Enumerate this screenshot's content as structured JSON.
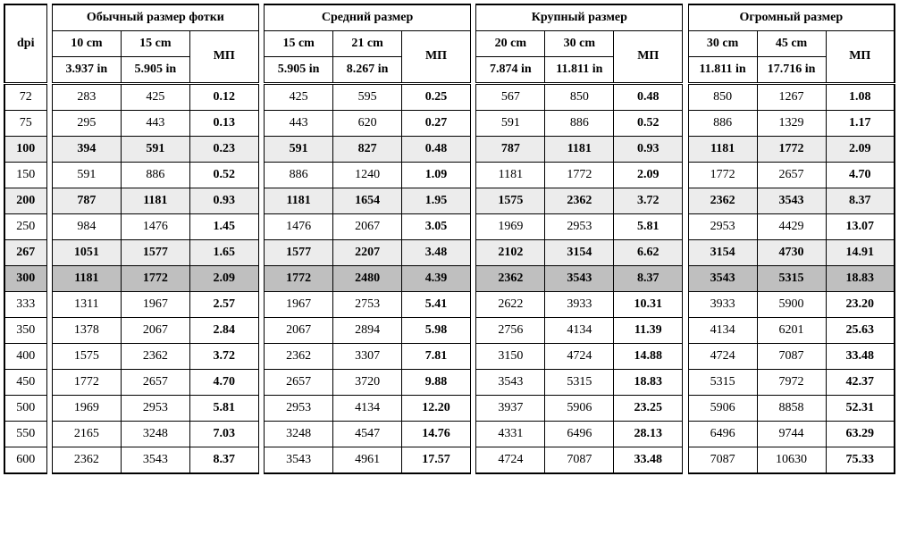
{
  "table": {
    "dpi_label": "dpi",
    "mp_label": "МП",
    "groups": [
      {
        "title": "Обычный размер фотки",
        "cm": [
          "10 cm",
          "15 cm"
        ],
        "in": [
          "3.937 in",
          "5.905 in"
        ]
      },
      {
        "title": "Средний размер",
        "cm": [
          "15 cm",
          "21 cm"
        ],
        "in": [
          "5.905 in",
          "8.267 in"
        ]
      },
      {
        "title": "Крупный размер",
        "cm": [
          "20 cm",
          "30 cm"
        ],
        "in": [
          "7.874 in",
          "11.811 in"
        ]
      },
      {
        "title": "Огромный размер",
        "cm": [
          "30 cm",
          "45 cm"
        ],
        "in": [
          "11.811 in",
          "17.716 in"
        ]
      }
    ],
    "rows": [
      {
        "dpi": "72",
        "shade": "",
        "g1": [
          "283",
          "425",
          "0.12"
        ],
        "g2": [
          "425",
          "595",
          "0.25"
        ],
        "g3": [
          "567",
          "850",
          "0.48"
        ],
        "g4": [
          "850",
          "1267",
          "1.08"
        ]
      },
      {
        "dpi": "75",
        "shade": "",
        "g1": [
          "295",
          "443",
          "0.13"
        ],
        "g2": [
          "443",
          "620",
          "0.27"
        ],
        "g3": [
          "591",
          "886",
          "0.52"
        ],
        "g4": [
          "886",
          "1329",
          "1.17"
        ]
      },
      {
        "dpi": "100",
        "shade": "light",
        "g1": [
          "394",
          "591",
          "0.23"
        ],
        "g2": [
          "591",
          "827",
          "0.48"
        ],
        "g3": [
          "787",
          "1181",
          "0.93"
        ],
        "g4": [
          "1181",
          "1772",
          "2.09"
        ]
      },
      {
        "dpi": "150",
        "shade": "",
        "g1": [
          "591",
          "886",
          "0.52"
        ],
        "g2": [
          "886",
          "1240",
          "1.09"
        ],
        "g3": [
          "1181",
          "1772",
          "2.09"
        ],
        "g4": [
          "1772",
          "2657",
          "4.70"
        ]
      },
      {
        "dpi": "200",
        "shade": "light",
        "g1": [
          "787",
          "1181",
          "0.93"
        ],
        "g2": [
          "1181",
          "1654",
          "1.95"
        ],
        "g3": [
          "1575",
          "2362",
          "3.72"
        ],
        "g4": [
          "2362",
          "3543",
          "8.37"
        ]
      },
      {
        "dpi": "250",
        "shade": "",
        "g1": [
          "984",
          "1476",
          "1.45"
        ],
        "g2": [
          "1476",
          "2067",
          "3.05"
        ],
        "g3": [
          "1969",
          "2953",
          "5.81"
        ],
        "g4": [
          "2953",
          "4429",
          "13.07"
        ]
      },
      {
        "dpi": "267",
        "shade": "light",
        "g1": [
          "1051",
          "1577",
          "1.65"
        ],
        "g2": [
          "1577",
          "2207",
          "3.48"
        ],
        "g3": [
          "2102",
          "3154",
          "6.62"
        ],
        "g4": [
          "3154",
          "4730",
          "14.91"
        ]
      },
      {
        "dpi": "300",
        "shade": "dark",
        "g1": [
          "1181",
          "1772",
          "2.09"
        ],
        "g2": [
          "1772",
          "2480",
          "4.39"
        ],
        "g3": [
          "2362",
          "3543",
          "8.37"
        ],
        "g4": [
          "3543",
          "5315",
          "18.83"
        ]
      },
      {
        "dpi": "333",
        "shade": "",
        "g1": [
          "1311",
          "1967",
          "2.57"
        ],
        "g2": [
          "1967",
          "2753",
          "5.41"
        ],
        "g3": [
          "2622",
          "3933",
          "10.31"
        ],
        "g4": [
          "3933",
          "5900",
          "23.20"
        ]
      },
      {
        "dpi": "350",
        "shade": "",
        "g1": [
          "1378",
          "2067",
          "2.84"
        ],
        "g2": [
          "2067",
          "2894",
          "5.98"
        ],
        "g3": [
          "2756",
          "4134",
          "11.39"
        ],
        "g4": [
          "4134",
          "6201",
          "25.63"
        ]
      },
      {
        "dpi": "400",
        "shade": "",
        "g1": [
          "1575",
          "2362",
          "3.72"
        ],
        "g2": [
          "2362",
          "3307",
          "7.81"
        ],
        "g3": [
          "3150",
          "4724",
          "14.88"
        ],
        "g4": [
          "4724",
          "7087",
          "33.48"
        ]
      },
      {
        "dpi": "450",
        "shade": "",
        "g1": [
          "1772",
          "2657",
          "4.70"
        ],
        "g2": [
          "2657",
          "3720",
          "9.88"
        ],
        "g3": [
          "3543",
          "5315",
          "18.83"
        ],
        "g4": [
          "5315",
          "7972",
          "42.37"
        ]
      },
      {
        "dpi": "500",
        "shade": "",
        "g1": [
          "1969",
          "2953",
          "5.81"
        ],
        "g2": [
          "2953",
          "4134",
          "12.20"
        ],
        "g3": [
          "3937",
          "5906",
          "23.25"
        ],
        "g4": [
          "5906",
          "8858",
          "52.31"
        ]
      },
      {
        "dpi": "550",
        "shade": "",
        "g1": [
          "2165",
          "3248",
          "7.03"
        ],
        "g2": [
          "3248",
          "4547",
          "14.76"
        ],
        "g3": [
          "4331",
          "6496",
          "28.13"
        ],
        "g4": [
          "6496",
          "9744",
          "63.29"
        ]
      },
      {
        "dpi": "600",
        "shade": "",
        "g1": [
          "2362",
          "3543",
          "8.37"
        ],
        "g2": [
          "3543",
          "4961",
          "17.57"
        ],
        "g3": [
          "4724",
          "7087",
          "33.48"
        ],
        "g4": [
          "7087",
          "10630",
          "75.33"
        ]
      }
    ]
  }
}
